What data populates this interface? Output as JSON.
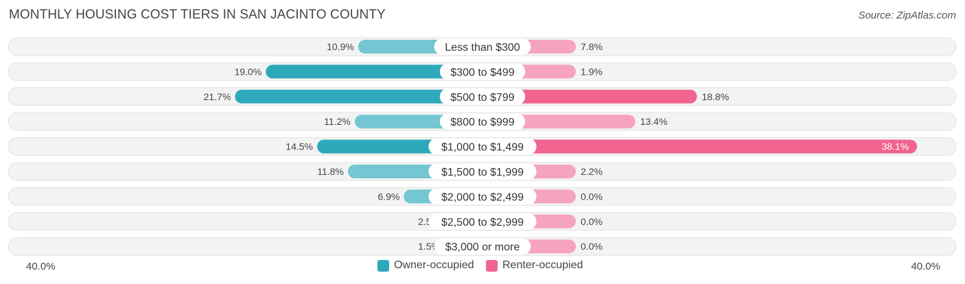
{
  "title": "MONTHLY HOUSING COST TIERS IN SAN JACINTO COUNTY",
  "source": "Source: ZipAtlas.com",
  "colors": {
    "owner": "#2ea9bc",
    "owner_light": "#73c6d2",
    "renter": "#f0648f",
    "renter_light": "#f6a4bd",
    "track": "#efefef"
  },
  "chart_data": {
    "type": "bar",
    "orientation": "diverging-horizontal",
    "categories": [
      "Less than $300",
      "$300 to $499",
      "$500 to $799",
      "$800 to $999",
      "$1,000 to $1,499",
      "$1,500 to $1,999",
      "$2,000 to $2,499",
      "$2,500 to $2,999",
      "$3,000 or more"
    ],
    "series": [
      {
        "name": "Owner-occupied",
        "values": [
          10.9,
          19.0,
          21.7,
          11.2,
          14.5,
          11.8,
          6.9,
          2.5,
          1.5
        ],
        "labels": [
          "10.9%",
          "19.0%",
          "21.7%",
          "11.2%",
          "14.5%",
          "11.8%",
          "6.9%",
          "2.5%",
          "1.5%"
        ]
      },
      {
        "name": "Renter-occupied",
        "values": [
          7.8,
          1.9,
          18.8,
          13.4,
          38.1,
          2.2,
          0.0,
          0.0,
          0.0
        ],
        "labels": [
          "7.8%",
          "1.9%",
          "18.8%",
          "13.4%",
          "38.1%",
          "2.2%",
          "0.0%",
          "0.0%",
          "0.0%"
        ]
      }
    ],
    "xlim": [
      -40,
      40
    ],
    "axis_left_label": "40.0%",
    "axis_right_label": "40.0%",
    "legend_position": "bottom-center"
  }
}
